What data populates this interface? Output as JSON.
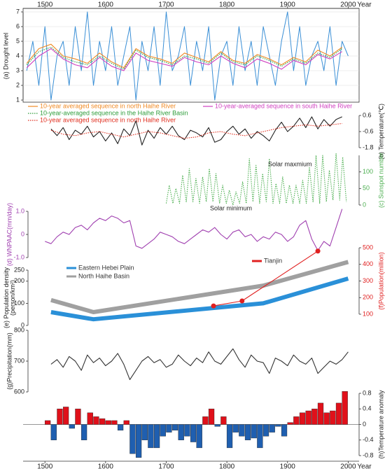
{
  "chart_data": [
    {
      "type": "line",
      "ylabel": "(a) Drought level",
      "xlim": [
        1464,
        2018
      ],
      "xticks": [
        1500,
        1600,
        1700,
        1800,
        1900,
        2000
      ],
      "xlabel": "Year",
      "ylim": [
        1,
        7
      ],
      "yticks": [
        1,
        2,
        3,
        4,
        5,
        6,
        7
      ],
      "grid": true,
      "x": [
        1470,
        1480,
        1490,
        1500,
        1510,
        1520,
        1530,
        1540,
        1550,
        1560,
        1570,
        1580,
        1590,
        1600,
        1610,
        1620,
        1630,
        1640,
        1650,
        1660,
        1670,
        1680,
        1690,
        1700,
        1710,
        1720,
        1730,
        1740,
        1750,
        1760,
        1770,
        1780,
        1790,
        1800,
        1810,
        1820,
        1830,
        1840,
        1850,
        1860,
        1870,
        1880,
        1890,
        1900,
        1910,
        1920,
        1930,
        1940,
        1950,
        1960,
        1970,
        1980,
        1990,
        2000
      ],
      "series": [
        {
          "color": "#3a8fd6",
          "values": [
            3,
            5,
            2,
            6,
            1,
            4,
            5,
            2,
            6,
            3,
            7,
            2,
            5,
            3,
            6,
            2,
            4,
            6,
            1,
            5,
            3,
            6,
            2,
            7,
            3,
            4,
            6,
            2,
            5,
            3,
            6,
            1,
            4,
            5,
            2,
            6,
            3,
            5,
            2,
            6,
            4,
            2,
            5,
            7,
            3,
            6,
            2,
            4,
            5,
            3,
            6,
            2,
            5,
            4
          ]
        },
        {
          "name": "10-year averaged sequence in north Haihe River",
          "color": "#f08a24",
          "x": [
            1470,
            1490,
            1510,
            1530,
            1550,
            1570,
            1590,
            1610,
            1630,
            1650,
            1670,
            1690,
            1710,
            1730,
            1750,
            1770,
            1790,
            1810,
            1830,
            1850,
            1870,
            1890,
            1910,
            1930,
            1950,
            1970,
            1990
          ],
          "values": [
            3.5,
            4.5,
            4.8,
            4.0,
            3.8,
            3.5,
            4.2,
            3.6,
            3.2,
            4.5,
            4.0,
            3.8,
            3.5,
            4.2,
            3.9,
            3.6,
            4.3,
            3.7,
            3.5,
            4.1,
            3.8,
            3.4,
            3.9,
            3.6,
            4.4,
            4.0,
            4.6
          ]
        },
        {
          "name": "10-year-averaged sequence in south Haihe River",
          "color": "#d040c0",
          "x": [
            1470,
            1490,
            1510,
            1530,
            1550,
            1570,
            1590,
            1610,
            1630,
            1650,
            1670,
            1690,
            1710,
            1730,
            1750,
            1770,
            1790,
            1810,
            1830,
            1850,
            1870,
            1890,
            1910,
            1930,
            1950,
            1970,
            1990
          ],
          "values": [
            3.2,
            4.0,
            4.5,
            3.8,
            3.4,
            3.2,
            3.9,
            3.3,
            3.0,
            4.2,
            3.7,
            3.5,
            3.3,
            3.9,
            3.6,
            3.4,
            4.0,
            3.5,
            3.2,
            3.8,
            3.5,
            3.1,
            3.7,
            3.4,
            4.1,
            3.8,
            4.3
          ]
        },
        {
          "name": "10-year-averaged sequence in the Haihe River Basin",
          "color": "#2e9c3a",
          "style": "dotted",
          "x": [
            1470,
            1490,
            1510,
            1530,
            1550,
            1570,
            1590,
            1610,
            1630,
            1650,
            1670,
            1690,
            1710,
            1730,
            1750,
            1770,
            1790,
            1810,
            1830,
            1850,
            1870,
            1890,
            1910,
            1930,
            1950,
            1970,
            1990
          ],
          "values": [
            3.4,
            4.3,
            4.6,
            3.9,
            3.6,
            3.4,
            4.0,
            3.5,
            3.1,
            4.4,
            3.9,
            3.7,
            3.4,
            4.0,
            3.8,
            3.5,
            4.2,
            3.6,
            3.4,
            4.0,
            3.7,
            3.3,
            3.8,
            3.5,
            4.2,
            3.9,
            4.5
          ]
        }
      ]
    },
    {
      "type": "line",
      "ylabel": "(b) Temperature(℃)",
      "ylim": [
        -1.8,
        0.6
      ],
      "yticks": [
        0.6,
        -0.6,
        -1.8
      ],
      "x": [
        1510,
        1520,
        1530,
        1540,
        1550,
        1560,
        1570,
        1580,
        1590,
        1600,
        1610,
        1620,
        1630,
        1640,
        1650,
        1660,
        1670,
        1680,
        1690,
        1700,
        1710,
        1720,
        1730,
        1740,
        1750,
        1760,
        1770,
        1780,
        1790,
        1800,
        1810,
        1820,
        1830,
        1840,
        1850,
        1860,
        1870,
        1880,
        1890,
        1900,
        1910,
        1920,
        1930,
        1940,
        1950,
        1960,
        1970,
        1980,
        1990
      ],
      "series": [
        {
          "color": "#222222",
          "values": [
            -0.4,
            -0.9,
            -0.3,
            -1.2,
            -0.5,
            -0.8,
            -0.2,
            -1.0,
            -0.6,
            -1.3,
            -0.7,
            -1.5,
            -0.4,
            -0.9,
            0.2,
            -1.6,
            -0.5,
            -1.1,
            -0.3,
            -0.8,
            -0.2,
            -0.9,
            -1.2,
            -0.5,
            -0.7,
            -1.0,
            -0.3,
            -1.4,
            -1.2,
            -0.6,
            -0.2,
            -0.8,
            -0.4,
            -1.1,
            -0.6,
            -0.9,
            -1.3,
            -0.5,
            0.1,
            -0.6,
            -0.2,
            0.4,
            -0.3,
            0.5,
            -0.4,
            0.3,
            -0.2,
            0.3,
            0.5
          ]
        },
        {
          "name": "10-year averaged sequence in north Haihe River",
          "color": "#e03020",
          "style": "dotted",
          "x": [
            1510,
            1530,
            1550,
            1570,
            1590,
            1610,
            1630,
            1650,
            1670,
            1690,
            1710,
            1730,
            1750,
            1770,
            1790,
            1810,
            1830,
            1850,
            1870,
            1890,
            1910,
            1930,
            1950,
            1970,
            1990
          ],
          "values": [
            -0.5,
            -0.8,
            -0.9,
            -0.7,
            -0.6,
            -0.8,
            -1.0,
            -0.8,
            -0.6,
            -0.7,
            -0.9,
            -1.1,
            -1.0,
            -0.7,
            -0.6,
            -0.8,
            -0.9,
            -0.7,
            -0.5,
            -0.3,
            -0.2,
            -0.1,
            -0.2,
            -0.1,
            0.0
          ]
        }
      ]
    },
    {
      "type": "line",
      "ylabel": "(c) Sunspot number",
      "ylim": [
        0,
        150
      ],
      "yticks": [
        0,
        50,
        100
      ],
      "annotations": [
        "Solar maxmium",
        "Solar minimum"
      ],
      "x": [
        1700,
        1705,
        1711,
        1716,
        1722,
        1727,
        1733,
        1738,
        1744,
        1749,
        1755,
        1760,
        1766,
        1771,
        1777,
        1782,
        1788,
        1793,
        1799,
        1804,
        1810,
        1815,
        1821,
        1826,
        1832,
        1837,
        1843,
        1848,
        1854,
        1859,
        1865,
        1870,
        1876,
        1881,
        1887,
        1892,
        1898,
        1903,
        1909,
        1914,
        1920,
        1925,
        1931,
        1936,
        1942,
        1947,
        1953,
        1958,
        1964,
        1969,
        1975,
        1980,
        1986,
        1991,
        1997
      ],
      "series": [
        {
          "color": "#4caf50",
          "style": "dotted",
          "values": [
            5,
            60,
            5,
            50,
            5,
            90,
            10,
            110,
            10,
            80,
            5,
            85,
            10,
            110,
            10,
            95,
            5,
            60,
            5,
            45,
            0,
            40,
            5,
            70,
            5,
            140,
            10,
            120,
            5,
            95,
            10,
            140,
            5,
            65,
            5,
            85,
            5,
            60,
            5,
            60,
            5,
            75,
            5,
            115,
            10,
            150,
            5,
            150,
            10,
            105,
            15,
            155,
            15,
            145,
            10
          ]
        }
      ]
    },
    {
      "type": "line",
      "ylabel": "(d) WNPAAC(mm/day)",
      "ylim": [
        -1,
        1
      ],
      "yticks": [
        {
          "value": 1,
          "label": "1.0"
        },
        0,
        {
          "value": -1,
          "label": "-1.0"
        }
      ],
      "x": [
        1500,
        1510,
        1520,
        1530,
        1540,
        1550,
        1560,
        1570,
        1580,
        1590,
        1600,
        1610,
        1620,
        1630,
        1640,
        1650,
        1660,
        1670,
        1680,
        1690,
        1700,
        1710,
        1720,
        1730,
        1740,
        1750,
        1760,
        1770,
        1780,
        1790,
        1800,
        1810,
        1820,
        1830,
        1840,
        1850,
        1860,
        1870,
        1880,
        1890,
        1900,
        1910,
        1920,
        1930,
        1940,
        1950,
        1960,
        1970,
        1980,
        1990
      ],
      "series": [
        {
          "color": "#a040b0",
          "values": [
            -0.3,
            -0.4,
            -0.1,
            0.1,
            0.0,
            0.3,
            0.4,
            0.2,
            0.5,
            0.7,
            0.6,
            0.8,
            0.7,
            0.5,
            0.6,
            -0.5,
            -0.6,
            -0.4,
            -0.2,
            0.1,
            0.0,
            -0.1,
            -0.3,
            -0.4,
            -0.2,
            0.0,
            0.2,
            0.1,
            0.3,
            0.0,
            -0.2,
            0.1,
            0.2,
            -0.1,
            0.0,
            -0.3,
            -0.1,
            -0.2,
            0.1,
            0.0,
            -0.3,
            -0.1,
            0.4,
            0.6,
            -0.2,
            -0.7,
            -0.3,
            -0.5,
            0.3,
            1.1
          ]
        }
      ]
    },
    {
      "type": "line",
      "ylabel": [
        "(e) Population density",
        "(person/km²)"
      ],
      "ylim": [
        0,
        250
      ],
      "yticks": [
        0,
        100,
        200,
        250
      ],
      "y2label": "(f)Population(million)",
      "y2lim": [
        100,
        500
      ],
      "y2ticks": [
        100,
        200,
        300,
        400,
        500
      ],
      "series": [
        {
          "name": "Eastern Hebei Plain",
          "color": "#2a90d8",
          "x": [
            1510,
            1580,
            1860,
            2000
          ],
          "values": [
            60,
            28,
            100,
            212
          ]
        },
        {
          "name": "North Haihe Basin",
          "color": "#a0a0a0",
          "x": [
            1510,
            1580,
            1860,
            2000
          ],
          "values": [
            115,
            60,
            180,
            287
          ]
        },
        {
          "name": "Tianjin",
          "color": "#e02020",
          "axis": "y2",
          "markers": true,
          "x": [
            1778,
            1825,
            1950
          ],
          "values": [
            150,
            180,
            480
          ]
        }
      ]
    },
    {
      "type": "line",
      "ylabel": "(g)Precipitation(mm)",
      "ylim": [
        600,
        800
      ],
      "yticks": [
        600,
        700,
        800
      ],
      "x": [
        1510,
        1520,
        1530,
        1540,
        1550,
        1560,
        1570,
        1580,
        1590,
        1600,
        1610,
        1620,
        1630,
        1640,
        1650,
        1660,
        1670,
        1680,
        1690,
        1700,
        1710,
        1720,
        1730,
        1740,
        1750,
        1760,
        1770,
        1780,
        1790,
        1800,
        1810,
        1820,
        1830,
        1840,
        1850,
        1860,
        1870,
        1880,
        1890,
        1900,
        1910,
        1920,
        1930,
        1940,
        1950,
        1960,
        1970,
        1980,
        1990,
        2000
      ],
      "series": [
        {
          "color": "#333333",
          "values": [
            690,
            705,
            680,
            715,
            700,
            670,
            720,
            695,
            710,
            685,
            700,
            725,
            690,
            640,
            670,
            700,
            715,
            695,
            705,
            680,
            690,
            720,
            700,
            685,
            710,
            695,
            730,
            700,
            690,
            715,
            740,
            705,
            680,
            720,
            700,
            695,
            660,
            710,
            700,
            685,
            720,
            700,
            690,
            710,
            660,
            680,
            700,
            690,
            705,
            730
          ]
        }
      ]
    },
    {
      "type": "bar",
      "ylabel": "(h)Temperature anomaly",
      "ylim": [
        -0.8,
        0.8
      ],
      "yticks": [
        0.8,
        0.4,
        0,
        -0.4,
        -0.8
      ],
      "xlim": [
        1464,
        2018
      ],
      "xticks": [
        1500,
        1600,
        1700,
        1800,
        1900,
        2000
      ],
      "xlabel": "Year",
      "colors": {
        "positive": "#e0101a",
        "negative": "#1f5fb0"
      },
      "x": [
        1500,
        1510,
        1520,
        1530,
        1540,
        1550,
        1560,
        1570,
        1580,
        1590,
        1600,
        1610,
        1620,
        1630,
        1640,
        1650,
        1660,
        1670,
        1680,
        1690,
        1700,
        1710,
        1720,
        1730,
        1740,
        1750,
        1760,
        1770,
        1780,
        1790,
        1800,
        1810,
        1820,
        1830,
        1840,
        1850,
        1860,
        1870,
        1880,
        1890,
        1900,
        1910,
        1920,
        1930,
        1940,
        1950,
        1960,
        1970,
        1980,
        1990
      ],
      "values": [
        0.1,
        -0.4,
        0.4,
        0.45,
        -0.1,
        0.4,
        -0.4,
        0.3,
        0.2,
        0.15,
        0.1,
        0.1,
        -0.15,
        0.1,
        -0.75,
        -0.85,
        -0.4,
        -0.6,
        -0.6,
        -0.3,
        -0.2,
        -0.15,
        -0.4,
        -0.3,
        -0.45,
        -0.6,
        0.2,
        0.4,
        -0.05,
        0.2,
        -0.6,
        -0.2,
        -0.3,
        -0.4,
        -0.35,
        -0.6,
        -0.3,
        -0.2,
        -0.05,
        -0.3,
        0.05,
        0.2,
        0.3,
        0.35,
        0.4,
        0.55,
        0.3,
        0.35,
        0.55,
        0.85
      ]
    }
  ]
}
